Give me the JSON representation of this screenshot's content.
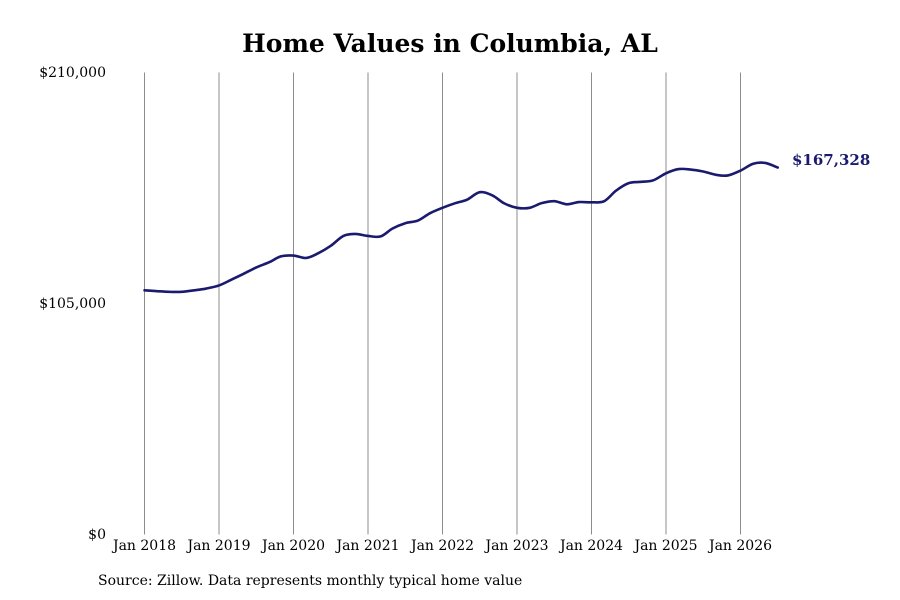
{
  "chart_data": {
    "type": "line",
    "title": "Home Values in Columbia, AL",
    "xlabel": "",
    "ylabel": "",
    "ylim": [
      0,
      210000
    ],
    "y_ticks": [
      {
        "value": 0,
        "label": "$0"
      },
      {
        "value": 105000,
        "label": "$105,000"
      },
      {
        "value": 210000,
        "label": "$210,000"
      }
    ],
    "xlim": [
      2018.0,
      2026.58
    ],
    "x_ticks": [
      {
        "value": 2018,
        "label": "Jan 2018"
      },
      {
        "value": 2019,
        "label": "Jan 2019"
      },
      {
        "value": 2020,
        "label": "Jan 2020"
      },
      {
        "value": 2021,
        "label": "Jan 2021"
      },
      {
        "value": 2022,
        "label": "Jan 2022"
      },
      {
        "value": 2023,
        "label": "Jan 2023"
      },
      {
        "value": 2024,
        "label": "Jan 2024"
      },
      {
        "value": 2025,
        "label": "Jan 2025"
      },
      {
        "value": 2026,
        "label": "Jan 2026"
      }
    ],
    "grid": "vertical",
    "legend": "none",
    "series": [
      {
        "color": "#1a1a6e",
        "points": [
          [
            2018.0,
            111000
          ],
          [
            2018.17,
            110600
          ],
          [
            2018.33,
            110300
          ],
          [
            2018.5,
            110300
          ],
          [
            2018.67,
            111000
          ],
          [
            2018.83,
            111800
          ],
          [
            2019.0,
            113200
          ],
          [
            2019.17,
            115900
          ],
          [
            2019.33,
            118500
          ],
          [
            2019.5,
            121400
          ],
          [
            2019.67,
            123700
          ],
          [
            2019.83,
            126400
          ],
          [
            2020.0,
            126800
          ],
          [
            2020.17,
            125700
          ],
          [
            2020.33,
            127800
          ],
          [
            2020.5,
            131200
          ],
          [
            2020.67,
            135700
          ],
          [
            2020.83,
            136600
          ],
          [
            2021.0,
            135700
          ],
          [
            2021.17,
            135500
          ],
          [
            2021.33,
            139100
          ],
          [
            2021.5,
            141500
          ],
          [
            2021.67,
            142700
          ],
          [
            2021.83,
            146000
          ],
          [
            2022.0,
            148500
          ],
          [
            2022.17,
            150600
          ],
          [
            2022.33,
            152200
          ],
          [
            2022.5,
            155600
          ],
          [
            2022.67,
            154100
          ],
          [
            2022.83,
            150500
          ],
          [
            2023.0,
            148500
          ],
          [
            2023.17,
            148500
          ],
          [
            2023.33,
            150600
          ],
          [
            2023.5,
            151500
          ],
          [
            2023.67,
            150100
          ],
          [
            2023.83,
            151100
          ],
          [
            2024.0,
            151000
          ],
          [
            2024.17,
            151500
          ],
          [
            2024.33,
            156300
          ],
          [
            2024.5,
            159700
          ],
          [
            2024.67,
            160300
          ],
          [
            2024.83,
            161000
          ],
          [
            2025.0,
            164200
          ],
          [
            2025.17,
            166100
          ],
          [
            2025.33,
            165900
          ],
          [
            2025.5,
            165000
          ],
          [
            2025.67,
            163500
          ],
          [
            2025.83,
            163200
          ],
          [
            2026.0,
            165400
          ],
          [
            2026.17,
            168500
          ],
          [
            2026.33,
            168900
          ],
          [
            2026.5,
            166800
          ]
        ],
        "end_label": "$167,328"
      }
    ]
  },
  "source": "Source: Zillow. Data represents monthly typical home value"
}
